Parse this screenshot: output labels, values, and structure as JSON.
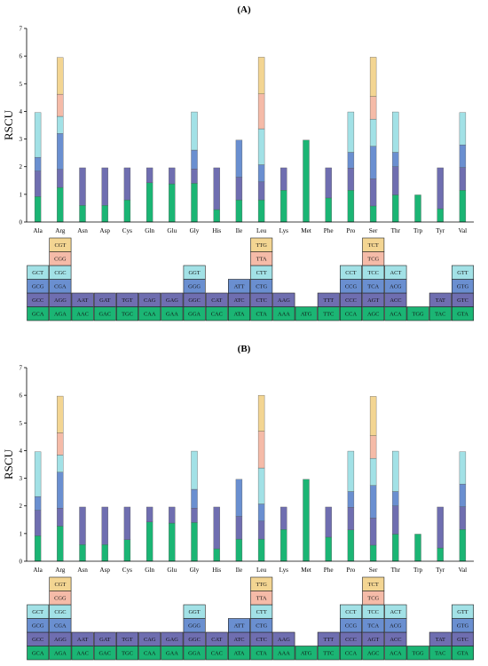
{
  "colors": {
    "level1": "#1bb574",
    "level2": "#6f6eb0",
    "level3": "#6a8fd0",
    "level4": "#a2e1e6",
    "level5": "#f5bba8",
    "level6": "#f3d592",
    "axis": "#000000"
  },
  "chart_data": [
    {
      "type": "bar",
      "stacked": true,
      "panel_label": "(A)",
      "ylabel": "RSCU",
      "ylim": [
        0,
        7
      ],
      "yticks": [
        0,
        1,
        2,
        3,
        4,
        5,
        6,
        7
      ],
      "categories": [
        "Ala",
        "Arg",
        "Asn",
        "Asp",
        "Cys",
        "Gln",
        "Glu",
        "Gly",
        "His",
        "Ile",
        "Leu",
        "Lys",
        "Met",
        "Phe",
        "Pro",
        "Ser",
        "Thr",
        "Trp",
        "Tyr",
        "Val"
      ],
      "segments": [
        [
          0.92,
          0.92,
          0.5,
          1.62
        ],
        [
          1.25,
          0.65,
          1.3,
          0.62,
          0.8,
          1.33
        ],
        [
          0.6,
          1.36
        ],
        [
          0.6,
          1.36
        ],
        [
          0.8,
          1.16
        ],
        [
          1.42,
          0.54
        ],
        [
          1.38,
          0.58
        ],
        [
          1.4,
          0.52,
          0.68,
          1.38
        ],
        [
          0.45,
          1.51
        ],
        [
          0.8,
          0.82,
          1.34
        ],
        [
          0.8,
          0.65,
          0.62,
          1.3,
          1.26,
          1.33
        ],
        [
          1.15,
          0.81
        ],
        [
          2.96
        ],
        [
          0.87,
          1.09
        ],
        [
          1.15,
          0.8,
          0.57,
          1.46
        ],
        [
          0.58,
          0.98,
          1.18,
          0.98,
          0.82,
          1.42
        ],
        [
          0.98,
          1.02,
          0.52,
          1.46
        ],
        [
          0.98
        ],
        [
          0.48,
          1.48
        ],
        [
          1.15,
          0.82,
          0.82,
          1.17
        ]
      ],
      "codons": [
        [
          "GCA",
          "GCC",
          "GCG",
          "GCT"
        ],
        [
          "AGA",
          "AGG",
          "CGA",
          "CGC",
          "CGG",
          "CGT"
        ],
        [
          "AAC",
          "AAT"
        ],
        [
          "GAC",
          "GAT"
        ],
        [
          "TGC",
          "TGT"
        ],
        [
          "CAA",
          "CAG"
        ],
        [
          "GAA",
          "GAG"
        ],
        [
          "GGA",
          "GGC",
          "GGG",
          "GGT"
        ],
        [
          "CAC",
          "CAT"
        ],
        [
          "ATA",
          "ATC",
          "ATT"
        ],
        [
          "CTA",
          "CTC",
          "CTG",
          "CTT",
          "TTA",
          "TTG"
        ],
        [
          "AAA",
          "AAG"
        ],
        [
          "ATG"
        ],
        [
          "TTC",
          "TTT"
        ],
        [
          "CCA",
          "CCC",
          "CCG",
          "CCT"
        ],
        [
          "AGC",
          "AGT",
          "TCA",
          "TCC",
          "TCG",
          "TCT"
        ],
        [
          "ACA",
          "ACC",
          "ACG",
          "ACT"
        ],
        [
          "TGG"
        ],
        [
          "TAC",
          "TAT"
        ],
        [
          "GTA",
          "GTC",
          "GTG",
          "GTT"
        ]
      ]
    },
    {
      "type": "bar",
      "stacked": true,
      "panel_label": "(B)",
      "ylabel": "RSCU",
      "ylim": [
        0,
        7
      ],
      "yticks": [
        0,
        1,
        2,
        3,
        4,
        5,
        6,
        7
      ],
      "categories": [
        "Ala",
        "Arg",
        "Asn",
        "Asp",
        "Cys",
        "Gln",
        "Glu",
        "Gly",
        "His",
        "Ile",
        "Leu",
        "Lys",
        "Met",
        "Phe",
        "Pro",
        "Ser",
        "Thr",
        "Trp",
        "Tyr",
        "Val"
      ],
      "segments": [
        [
          0.92,
          0.92,
          0.5,
          1.62
        ],
        [
          1.27,
          0.65,
          1.3,
          0.62,
          0.8,
          1.33
        ],
        [
          0.6,
          1.36
        ],
        [
          0.6,
          1.36
        ],
        [
          0.78,
          1.18
        ],
        [
          1.42,
          0.54
        ],
        [
          1.38,
          0.58
        ],
        [
          1.4,
          0.52,
          0.68,
          1.38
        ],
        [
          0.45,
          1.51
        ],
        [
          0.8,
          0.82,
          1.34
        ],
        [
          0.8,
          0.65,
          0.62,
          1.3,
          1.33,
          1.3
        ],
        [
          1.15,
          0.81
        ],
        [
          2.96
        ],
        [
          0.87,
          1.09
        ],
        [
          1.13,
          0.82,
          0.57,
          1.46
        ],
        [
          0.58,
          0.98,
          1.18,
          0.98,
          0.82,
          1.42
        ],
        [
          0.98,
          1.02,
          0.52,
          1.46
        ],
        [
          0.98
        ],
        [
          0.48,
          1.48
        ],
        [
          1.15,
          0.82,
          0.82,
          1.17
        ]
      ],
      "codons": [
        [
          "GCA",
          "GCC",
          "GCG",
          "GCT"
        ],
        [
          "AGA",
          "AGG",
          "CGA",
          "CGC",
          "CGG",
          "CGT"
        ],
        [
          "AAC",
          "AAT"
        ],
        [
          "GAC",
          "GAT"
        ],
        [
          "TGC",
          "TGT"
        ],
        [
          "CAA",
          "CAG"
        ],
        [
          "GAA",
          "GAG"
        ],
        [
          "GGA",
          "GGC",
          "GGG",
          "GGT"
        ],
        [
          "CAC",
          "CAT"
        ],
        [
          "ATA",
          "ATC",
          "ATT"
        ],
        [
          "CTA",
          "CTC",
          "CTG",
          "CTT",
          "TTA",
          "TTG"
        ],
        [
          "AAA",
          "AAG"
        ],
        [
          "ATG"
        ],
        [
          "TTC",
          "TTT"
        ],
        [
          "CCA",
          "CCC",
          "CCG",
          "CCT"
        ],
        [
          "AGC",
          "AGT",
          "TCA",
          "TCC",
          "TCG",
          "TCT"
        ],
        [
          "ACA",
          "ACC",
          "ACG",
          "ACT"
        ],
        [
          "TGG"
        ],
        [
          "TAC",
          "TAT"
        ],
        [
          "GTA",
          "GTC",
          "GTG",
          "GTT"
        ]
      ]
    }
  ]
}
